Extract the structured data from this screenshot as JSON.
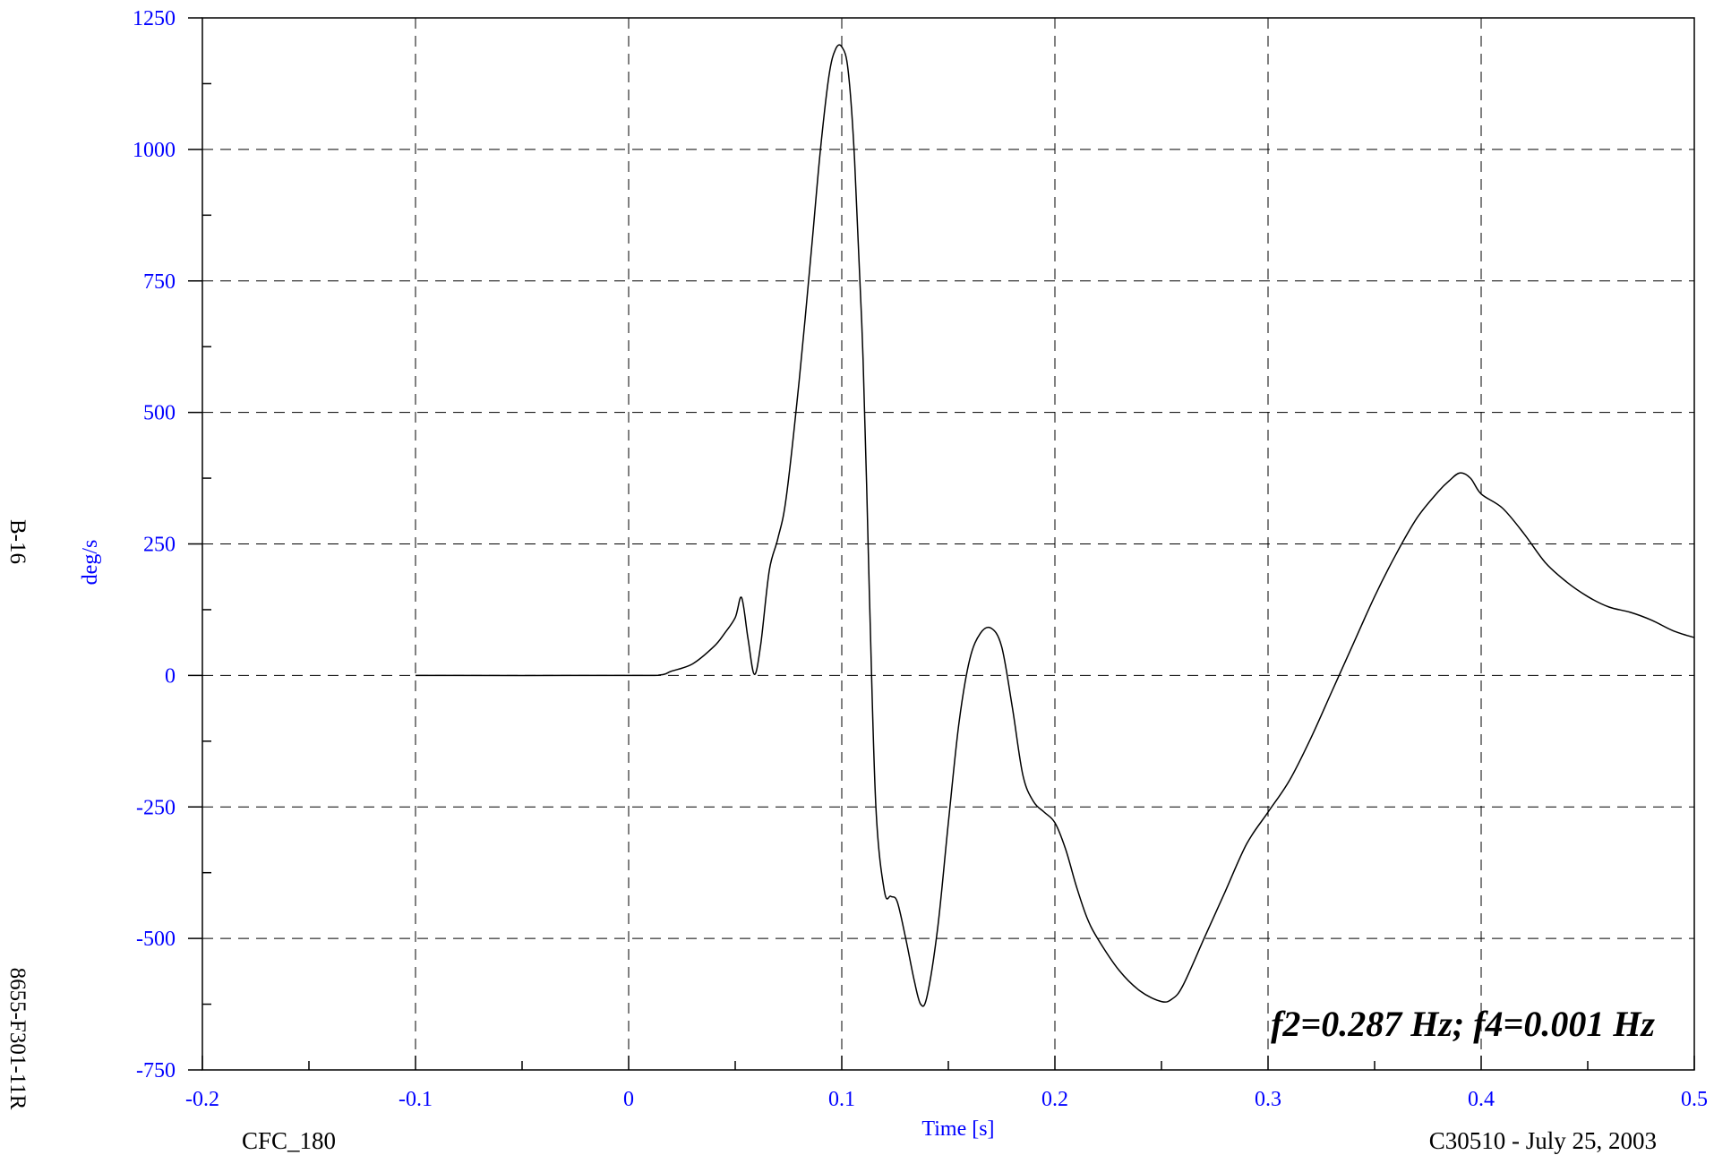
{
  "side_labels": {
    "top": "B-16",
    "bottom": "8655-F301-11R"
  },
  "footer": {
    "left": "CFC_180",
    "right": "C30510 - July 25, 2003"
  },
  "chart_data": {
    "type": "line",
    "title": "",
    "xlabel": "Time [s]",
    "ylabel": "deg/s",
    "xlim": [
      -0.2,
      0.5
    ],
    "ylim": [
      -750,
      1250
    ],
    "x_ticks": [
      -0.2,
      -0.1,
      0,
      0.1,
      0.2,
      0.3,
      0.4,
      0.5
    ],
    "x_tick_labels": [
      "-0.2",
      "-0.1",
      "0",
      "0.1",
      "0.2",
      "0.3",
      "0.4",
      "0.5"
    ],
    "y_ticks": [
      -750,
      -500,
      -250,
      0,
      250,
      500,
      750,
      1000,
      1250
    ],
    "y_tick_labels": [
      "-750",
      "-500",
      "-250",
      "0",
      "250",
      "500",
      "750",
      "1000",
      "1250"
    ],
    "grid": true,
    "annotation": "f2=0.287 Hz; f4=0.001 Hz",
    "label_color": "#0000ff",
    "line_color": "#000000",
    "series": [
      {
        "x": [
          -0.1,
          0.0,
          0.015,
          0.02,
          0.03,
          0.04,
          0.045,
          0.05,
          0.053,
          0.056,
          0.059,
          0.062,
          0.066,
          0.07,
          0.074,
          0.08,
          0.086,
          0.09,
          0.094,
          0.097,
          0.1,
          0.103,
          0.106,
          0.11,
          0.113,
          0.116,
          0.12,
          0.123,
          0.126,
          0.13,
          0.134,
          0.137,
          0.14,
          0.145,
          0.15,
          0.155,
          0.16,
          0.165,
          0.17,
          0.175,
          0.18,
          0.185,
          0.19,
          0.195,
          0.2,
          0.205,
          0.21,
          0.215,
          0.22,
          0.23,
          0.24,
          0.25,
          0.255,
          0.26,
          0.27,
          0.28,
          0.29,
          0.3,
          0.31,
          0.32,
          0.33,
          0.34,
          0.35,
          0.36,
          0.37,
          0.38,
          0.385,
          0.39,
          0.395,
          0.4,
          0.41,
          0.42,
          0.43,
          0.44,
          0.45,
          0.46,
          0.47,
          0.48,
          0.49,
          0.5
        ],
        "y": [
          0,
          0,
          1,
          8,
          22,
          55,
          80,
          110,
          148,
          70,
          2,
          60,
          200,
          260,
          340,
          560,
          820,
          1000,
          1140,
          1190,
          1195,
          1150,
          980,
          600,
          150,
          -250,
          -410,
          -420,
          -430,
          -500,
          -580,
          -625,
          -610,
          -480,
          -280,
          -90,
          30,
          80,
          90,
          55,
          -60,
          -190,
          -240,
          -260,
          -280,
          -330,
          -400,
          -460,
          -500,
          -560,
          -600,
          -620,
          -615,
          -590,
          -500,
          -410,
          -320,
          -260,
          -200,
          -120,
          -30,
          60,
          150,
          230,
          300,
          350,
          370,
          385,
          375,
          345,
          318,
          270,
          215,
          178,
          150,
          130,
          120,
          105,
          85,
          72
        ]
      }
    ]
  }
}
